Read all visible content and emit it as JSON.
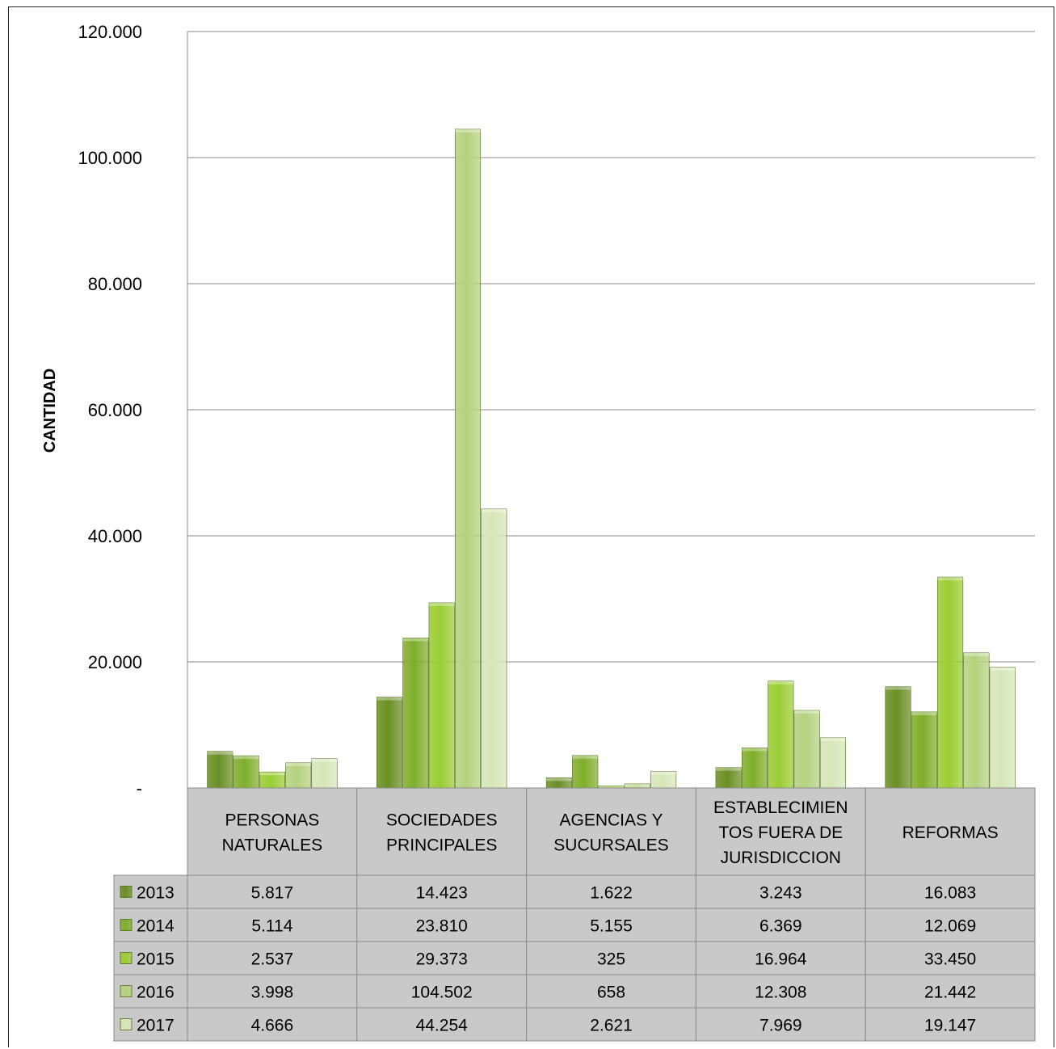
{
  "chart_data": {
    "type": "bar",
    "title": "",
    "xlabel": "",
    "ylabel": "CANTIDAD",
    "ylim": [
      0,
      120000
    ],
    "yticks": [
      0,
      20000,
      40000,
      60000,
      80000,
      100000,
      120000
    ],
    "ytick_labels": [
      "-",
      "20.000",
      "40.000",
      "60.000",
      "80.000",
      "100.000",
      "120.000"
    ],
    "grid": true,
    "legend": "data-table",
    "categories": [
      [
        "PERSONAS",
        "NATURALES"
      ],
      [
        "SOCIEDADES",
        "PRINCIPALES"
      ],
      [
        "AGENCIAS Y",
        "SUCURSALES"
      ],
      [
        "ESTABLECIMIEN",
        "TOS FUERA DE",
        "JURISDICCION"
      ],
      [
        "REFORMAS"
      ]
    ],
    "series": [
      {
        "name": "2013",
        "color": "#6b8e23",
        "values": [
          5817,
          14423,
          1622,
          3243,
          16083
        ],
        "labels": [
          "5.817",
          "14.423",
          "1.622",
          "3.243",
          "16.083"
        ]
      },
      {
        "name": "2014",
        "color": "#7fae2a",
        "values": [
          5114,
          23810,
          5155,
          6369,
          12069
        ],
        "labels": [
          "5.114",
          "23.810",
          "5.155",
          "6.369",
          "12.069"
        ]
      },
      {
        "name": "2015",
        "color": "#9acd32",
        "values": [
          2537,
          29373,
          325,
          16964,
          33450
        ],
        "labels": [
          "2.537",
          "29.373",
          "325",
          "16.964",
          "33.450"
        ]
      },
      {
        "name": "2016",
        "color": "#b5d17e",
        "values": [
          3998,
          104502,
          658,
          12308,
          21442
        ],
        "labels": [
          "3.998",
          "104.502",
          "658",
          "12.308",
          "21.442"
        ]
      },
      {
        "name": "2017",
        "color": "#d6e6b8",
        "values": [
          4666,
          44254,
          2621,
          7969,
          19147
        ],
        "labels": [
          "4.666",
          "44.254",
          "2.621",
          "7.969",
          "19.147"
        ]
      }
    ]
  }
}
